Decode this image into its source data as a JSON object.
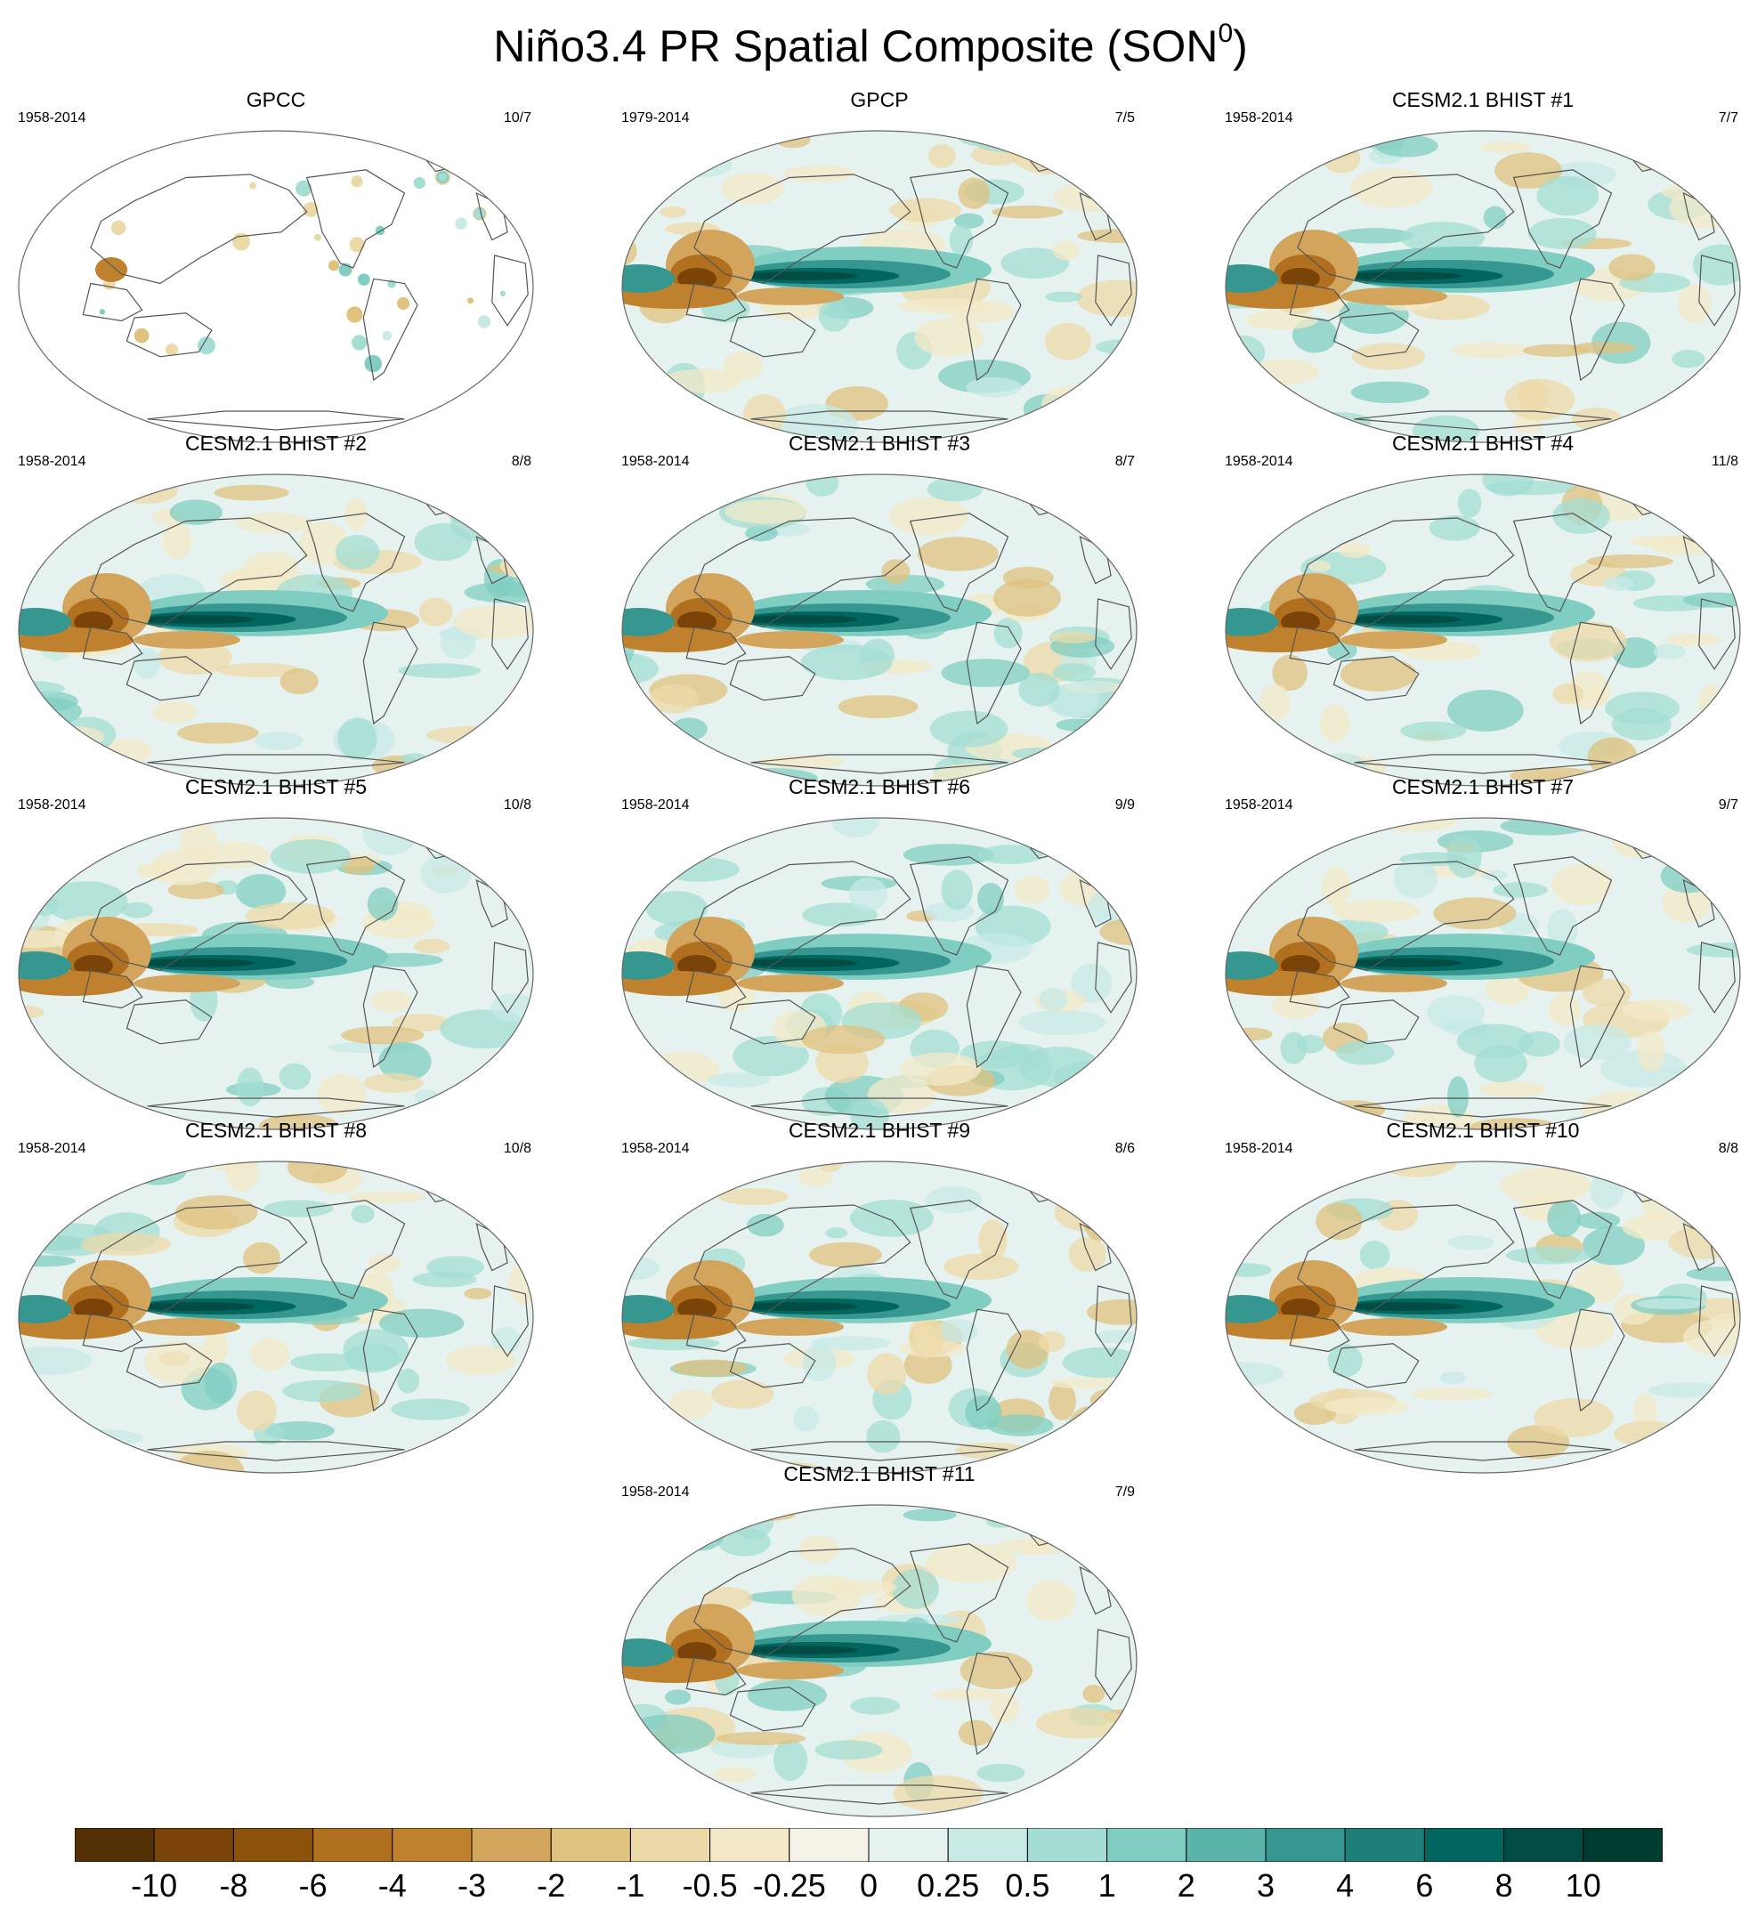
{
  "title": {
    "main": "Niño3.4 PR Spatial Composite (SON",
    "sup": "0",
    "tail": ")"
  },
  "panels": [
    {
      "name": "GPCC",
      "years": "1958-2014",
      "count": "10/7",
      "land_only": true,
      "seed": 1
    },
    {
      "name": "GPCP",
      "years": "1979-2014",
      "count": "7/5",
      "land_only": false,
      "seed": 2
    },
    {
      "name": "CESM2.1 BHIST #1",
      "years": "1958-2014",
      "count": "7/7",
      "land_only": false,
      "seed": 3
    },
    {
      "name": "CESM2.1 BHIST #2",
      "years": "1958-2014",
      "count": "8/8",
      "land_only": false,
      "seed": 4
    },
    {
      "name": "CESM2.1 BHIST #3",
      "years": "1958-2014",
      "count": "8/7",
      "land_only": false,
      "seed": 5
    },
    {
      "name": "CESM2.1 BHIST #4",
      "years": "1958-2014",
      "count": "11/8",
      "land_only": false,
      "seed": 6
    },
    {
      "name": "CESM2.1 BHIST #5",
      "years": "1958-2014",
      "count": "10/8",
      "land_only": false,
      "seed": 7
    },
    {
      "name": "CESM2.1 BHIST #6",
      "years": "1958-2014",
      "count": "9/9",
      "land_only": false,
      "seed": 8
    },
    {
      "name": "CESM2.1 BHIST #7",
      "years": "1958-2014",
      "count": "9/7",
      "land_only": false,
      "seed": 9
    },
    {
      "name": "CESM2.1 BHIST #8",
      "years": "1958-2014",
      "count": "10/8",
      "land_only": false,
      "seed": 10
    },
    {
      "name": "CESM2.1 BHIST #9",
      "years": "1958-2014",
      "count": "8/6",
      "land_only": false,
      "seed": 11
    },
    {
      "name": "CESM2.1 BHIST #10",
      "years": "1958-2014",
      "count": "8/8",
      "land_only": false,
      "seed": 12
    },
    {
      "name": "CESM2.1 BHIST #11",
      "years": "1958-2014",
      "count": "7/9",
      "land_only": false,
      "seed": 13
    }
  ],
  "colorbar": {
    "labels": [
      "-10",
      "-8",
      "-6",
      "-4",
      "-3",
      "-2",
      "-1",
      "-0.5",
      "-0.25",
      "0",
      "0.25",
      "0.5",
      "1",
      "2",
      "3",
      "4",
      "6",
      "8",
      "10"
    ],
    "colors": [
      "#543005",
      "#7a4409",
      "#8c510a",
      "#b0701f",
      "#bf812d",
      "#d3a55c",
      "#dfc27d",
      "#ecd9a8",
      "#f3e9c8",
      "#f5f2e8",
      "#e6f2ef",
      "#c7eae5",
      "#a3ddd3",
      "#80cdc1",
      "#5ab4a9",
      "#35978f",
      "#1d7f76",
      "#01665e",
      "#014d45",
      "#003c30"
    ]
  },
  "colors": {
    "land_outline": "#555555",
    "map_border": "#666666"
  }
}
